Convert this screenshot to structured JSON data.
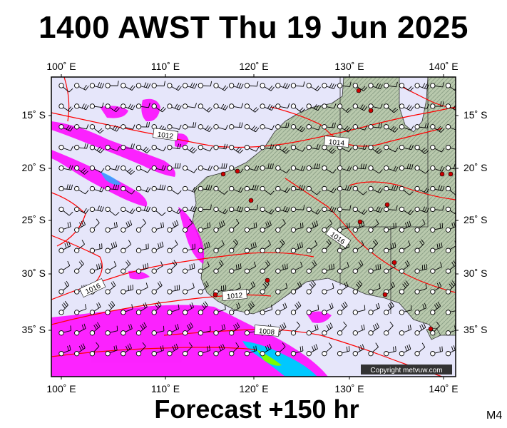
{
  "title": "1400 AWST Thu 19 Jun 2025",
  "footer": "Forecast +150 hr",
  "model": "M4",
  "copyright": "Copyright metvuw.com",
  "axes": {
    "lon_labels": [
      "100˚ E",
      "110˚ E",
      "120˚ E",
      "130˚ E",
      "140˚ E"
    ],
    "lat_labels": [
      "15˚ S",
      "20˚ S",
      "25˚ S",
      "30˚ S",
      "35˚ S"
    ]
  },
  "isobars": [
    {
      "label": "1012"
    },
    {
      "label": "1014"
    },
    {
      "label": "1016"
    },
    {
      "label": "1016"
    },
    {
      "label": "1012"
    },
    {
      "label": "1008"
    }
  ],
  "colors": {
    "ocean": "#e6e6fa",
    "land": "#b9c9ad",
    "isobar": "#ff0000",
    "rain": "#ff00ff",
    "heavy_rain": "#00c8ff"
  }
}
